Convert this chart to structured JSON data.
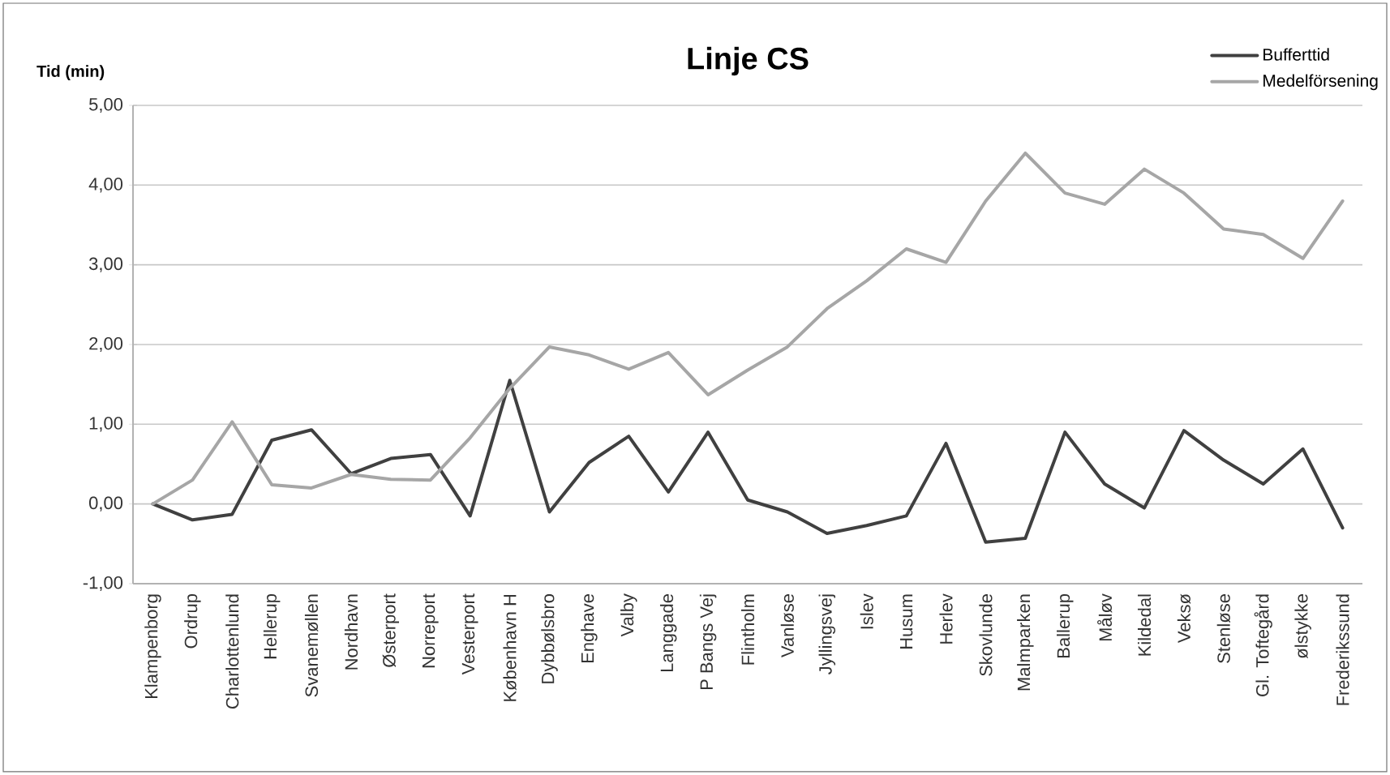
{
  "chart_data": {
    "type": "line",
    "title": "Linje CS",
    "ylabel": "Tid (min)",
    "categories": [
      "Klampenborg",
      "Ordrup",
      "Charlottenlund",
      "Hellerup",
      "Svanemøllen",
      "Nordhavn",
      "Østerport",
      "Norreport",
      "Vesterport",
      "København H",
      "Dybbølsbro",
      "Enghave",
      "Valby",
      "Langgade",
      "P Bangs Vej",
      "Flintholm",
      "Vanløse",
      "Jyllingsvej",
      "Islev",
      "Husum",
      "Herlev",
      "Skovlunde",
      "Malmparken",
      "Ballerup",
      "Måløv",
      "Kildedal",
      "Veksø",
      "Stenløse",
      "Gl. Toftegård",
      "ølstykke",
      "Frederikssund"
    ],
    "series": [
      {
        "name": "Bufferttid",
        "color": "#404040",
        "values": [
          0.0,
          -0.2,
          -0.13,
          0.8,
          0.93,
          0.38,
          0.57,
          0.62,
          -0.15,
          1.55,
          -0.1,
          0.52,
          0.85,
          0.15,
          0.9,
          0.05,
          -0.1,
          -0.37,
          -0.27,
          -0.15,
          0.76,
          -0.48,
          -0.43,
          0.9,
          0.25,
          -0.05,
          0.92,
          0.55,
          0.25,
          0.69,
          -0.3
        ]
      },
      {
        "name": "Medelförsening",
        "color": "#a6a6a6",
        "values": [
          0.0,
          0.3,
          1.03,
          0.24,
          0.2,
          0.37,
          0.31,
          0.3,
          0.83,
          1.45,
          1.97,
          1.87,
          1.69,
          1.9,
          1.37,
          1.68,
          1.97,
          2.45,
          2.8,
          3.2,
          3.03,
          3.8,
          4.4,
          3.9,
          3.76,
          4.2,
          3.9,
          3.45,
          3.38,
          3.08,
          3.8
        ]
      }
    ],
    "ylim": [
      -1,
      5
    ],
    "yticks": [
      {
        "value": -1,
        "label": "-1,00"
      },
      {
        "value": 0,
        "label": "0,00"
      },
      {
        "value": 1,
        "label": "1,00"
      },
      {
        "value": 2,
        "label": "2,00"
      },
      {
        "value": 3,
        "label": "3,00"
      },
      {
        "value": 4,
        "label": "4,00"
      },
      {
        "value": 5,
        "label": "5,00"
      }
    ],
    "grid": "y",
    "legend": "top right",
    "marker": "none",
    "line_style": "solid"
  }
}
